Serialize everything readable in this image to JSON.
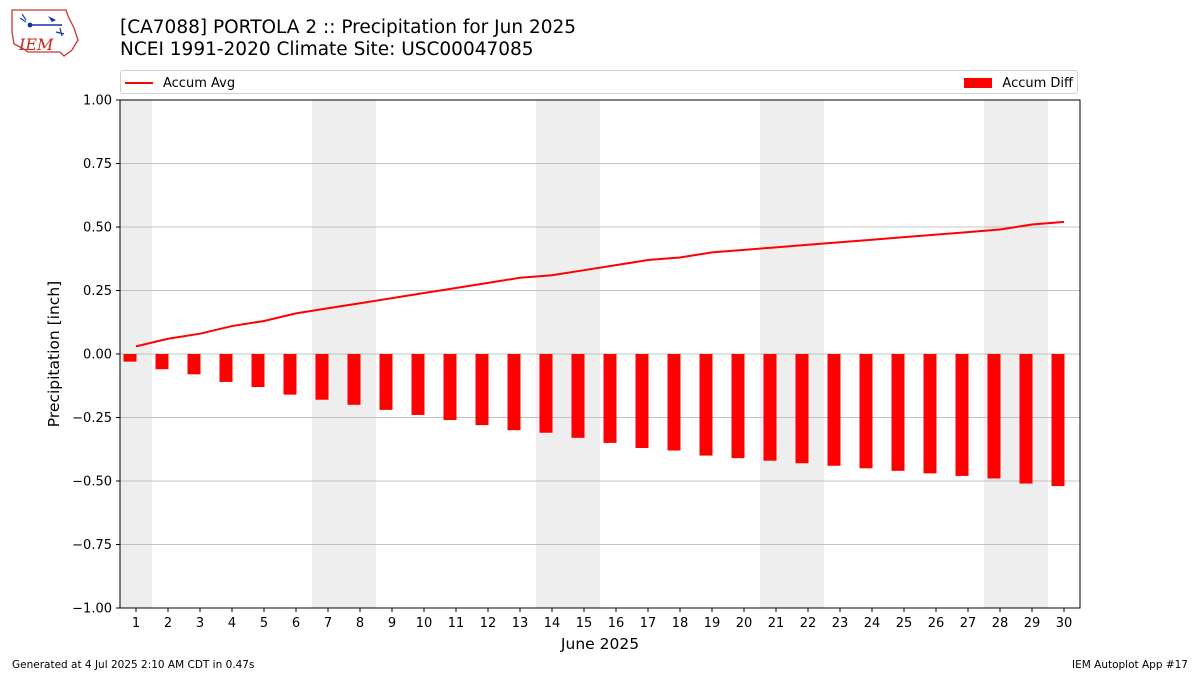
{
  "header": {
    "logo_text": "IEM",
    "title": "[CA7088] PORTOLA 2 :: Precipitation for Jun 2025",
    "subtitle": "NCEI 1991-2020 Climate Site: USC00047085"
  },
  "legend": {
    "line_label": "Accum Avg",
    "bar_label": "Accum Diff",
    "placement": "top"
  },
  "footer": {
    "left": "Generated at 4 Jul 2025 2:10 AM CDT in 0.47s",
    "right": "IEM Autoplot App #17"
  },
  "colors": {
    "series": "#ff0000",
    "weekend_shade": "#eeeeee",
    "grid": "#b0b0b0"
  },
  "chart_data": {
    "type": "bar",
    "xlabel": "June 2025",
    "ylabel": "Precipitation [inch]",
    "ylim": [
      -1.0,
      1.0
    ],
    "yticks": [
      -1.0,
      -0.75,
      -0.5,
      -0.25,
      0.0,
      0.25,
      0.5,
      0.75,
      1.0
    ],
    "ytick_labels": [
      "−1.00",
      "−0.75",
      "−0.50",
      "−0.25",
      "0.00",
      "0.25",
      "0.50",
      "0.75",
      "1.00"
    ],
    "grid": "horizontal",
    "categories": [
      "1",
      "2",
      "3",
      "4",
      "5",
      "6",
      "7",
      "8",
      "9",
      "10",
      "11",
      "12",
      "13",
      "14",
      "15",
      "16",
      "17",
      "18",
      "19",
      "20",
      "21",
      "22",
      "23",
      "24",
      "25",
      "26",
      "27",
      "28",
      "29",
      "30"
    ],
    "weekend_days": [
      1,
      7,
      8,
      14,
      15,
      21,
      22,
      28,
      29
    ],
    "series": [
      {
        "name": "Accum Avg",
        "type": "line",
        "values": [
          0.03,
          0.06,
          0.08,
          0.11,
          0.13,
          0.16,
          0.18,
          0.2,
          0.22,
          0.24,
          0.26,
          0.28,
          0.3,
          0.31,
          0.33,
          0.35,
          0.37,
          0.38,
          0.4,
          0.41,
          0.42,
          0.43,
          0.44,
          0.45,
          0.46,
          0.47,
          0.48,
          0.49,
          0.51,
          0.52
        ]
      },
      {
        "name": "Accum Diff",
        "type": "bar",
        "values": [
          -0.03,
          -0.06,
          -0.08,
          -0.11,
          -0.13,
          -0.16,
          -0.18,
          -0.2,
          -0.22,
          -0.24,
          -0.26,
          -0.28,
          -0.3,
          -0.31,
          -0.33,
          -0.35,
          -0.37,
          -0.38,
          -0.4,
          -0.41,
          -0.42,
          -0.43,
          -0.44,
          -0.45,
          -0.46,
          -0.47,
          -0.48,
          -0.49,
          -0.51,
          -0.52
        ]
      }
    ]
  }
}
